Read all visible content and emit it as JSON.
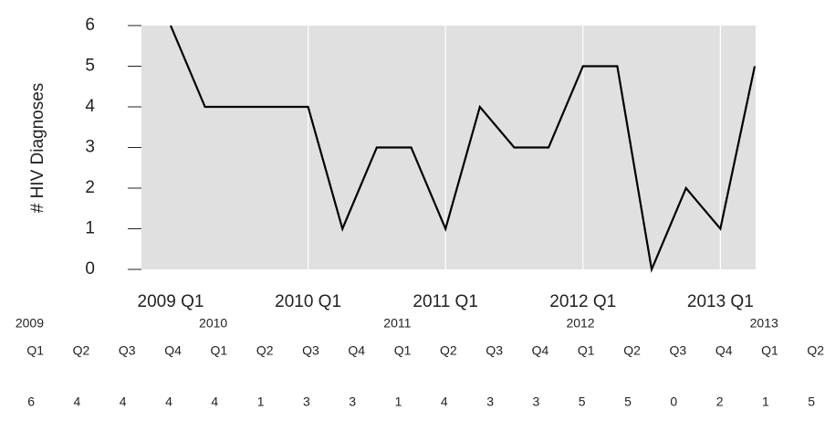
{
  "chart_data": {
    "type": "line",
    "y_label": "# HIV Diagnoses",
    "categories": [
      "2009 Q1",
      null,
      null,
      null,
      "2010 Q1",
      null,
      null,
      null,
      "2011 Q1",
      null,
      null,
      null,
      "2012 Q1",
      null,
      null,
      null,
      "2013 Q1",
      null
    ],
    "series": [
      {
        "color": "#000000",
        "values": [
          6,
          4,
          4,
          4,
          4,
          1,
          3,
          3,
          1,
          4,
          3,
          3,
          5,
          5,
          0,
          2,
          1,
          5
        ]
      }
    ],
    "ylim": [
      0,
      6
    ],
    "yticks": [
      0,
      1,
      2,
      3,
      4,
      5,
      6
    ],
    "grid": true,
    "background": "#e0e0e1"
  },
  "table": {
    "years": [
      "2009",
      null,
      null,
      null,
      "2010",
      null,
      null,
      null,
      "2011",
      null,
      null,
      null,
      "2012",
      null,
      null,
      null,
      "2013",
      null
    ],
    "quarters": [
      "Q1",
      "Q2",
      "Q3",
      "Q4",
      "Q1",
      "Q2",
      "Q3",
      "Q4",
      "Q1",
      "Q2",
      "Q3",
      "Q4",
      "Q1",
      "Q2",
      "Q3",
      "Q4",
      "Q1",
      "Q2"
    ]
  }
}
